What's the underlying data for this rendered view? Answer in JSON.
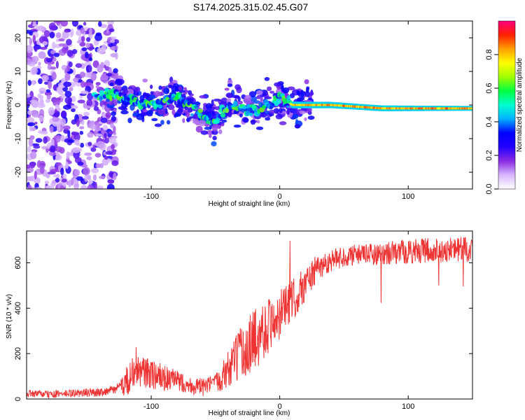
{
  "title": "S174.2025.315.02.45.G07",
  "chart_data": [
    {
      "type": "heatmap",
      "xlabel": "Height of straight line (km)",
      "ylabel": "Frequency (Hz)",
      "xlim": [
        -197,
        150
      ],
      "ylim": [
        -25,
        25
      ],
      "xticks": [
        -100,
        0,
        100
      ],
      "xtick_labels": [
        "-100",
        "0",
        "100"
      ],
      "yticks": [
        -20,
        -10,
        0,
        10,
        20
      ],
      "ytick_labels": [
        "-20",
        "-10",
        "0",
        "10",
        "20"
      ],
      "ridge": [
        {
          "x": -145,
          "y": 3
        },
        {
          "x": -130,
          "y": 3
        },
        {
          "x": -120,
          "y": 2
        },
        {
          "x": -110,
          "y": 1
        },
        {
          "x": -100,
          "y": 0
        },
        {
          "x": -90,
          "y": 1
        },
        {
          "x": -80,
          "y": 2
        },
        {
          "x": -72,
          "y": 0
        },
        {
          "x": -65,
          "y": -2
        },
        {
          "x": -58,
          "y": -4
        },
        {
          "x": -50,
          "y": -5
        },
        {
          "x": -44,
          "y": -2
        },
        {
          "x": -38,
          "y": 0
        },
        {
          "x": -30,
          "y": -1
        },
        {
          "x": -24,
          "y": -2
        },
        {
          "x": -18,
          "y": -1
        },
        {
          "x": -10,
          "y": 0
        },
        {
          "x": -4,
          "y": 1
        },
        {
          "x": 0,
          "y": 2.5
        },
        {
          "x": 5,
          "y": 1
        },
        {
          "x": 10,
          "y": 0
        },
        {
          "x": 20,
          "y": 0
        },
        {
          "x": 40,
          "y": 0
        },
        {
          "x": 60,
          "y": -0.5
        },
        {
          "x": 80,
          "y": -1
        },
        {
          "x": 100,
          "y": -1
        },
        {
          "x": 125,
          "y": -1
        },
        {
          "x": 150,
          "y": -1
        }
      ]
    },
    {
      "type": "colorbar",
      "label": "Normalized spectral amplitude",
      "range": [
        0,
        1
      ],
      "ticks": [
        "0.0",
        "0.2",
        "0.4",
        "0.6",
        "0.8"
      ],
      "tick_values": [
        0,
        0.2,
        0.4,
        0.6,
        0.8
      ],
      "colors": [
        "#ffffff",
        "#d8b8ff",
        "#8a2be2",
        "#2200ff",
        "#0000ff",
        "#00b0ff",
        "#00ffd0",
        "#00ff40",
        "#a0ff00",
        "#ffff00",
        "#ffa000",
        "#ff2000",
        "#ff0080"
      ]
    },
    {
      "type": "line",
      "xlabel": "Height of straight line (km)",
      "ylabel": "SNR (10 * v/v)",
      "xlim": [
        -197,
        150
      ],
      "ylim": [
        0,
        740
      ],
      "xticks": [
        -100,
        0,
        100
      ],
      "xtick_labels": [
        "-100",
        "0",
        "100"
      ],
      "yticks": [
        0,
        200,
        400,
        600
      ],
      "ytick_labels": [
        "0",
        "200",
        "400",
        "600"
      ],
      "color": "#ee3333",
      "series": [
        {
          "name": "SNR",
          "points": [
            {
              "x": -197,
              "y": 25
            },
            {
              "x": -180,
              "y": 20
            },
            {
              "x": -160,
              "y": 25
            },
            {
              "x": -140,
              "y": 30
            },
            {
              "x": -130,
              "y": 40
            },
            {
              "x": -122,
              "y": 60
            },
            {
              "x": -115,
              "y": 110
            },
            {
              "x": -110,
              "y": 120
            },
            {
              "x": -100,
              "y": 110
            },
            {
              "x": -90,
              "y": 90
            },
            {
              "x": -80,
              "y": 80
            },
            {
              "x": -70,
              "y": 60
            },
            {
              "x": -60,
              "y": 50
            },
            {
              "x": -50,
              "y": 70
            },
            {
              "x": -40,
              "y": 130
            },
            {
              "x": -30,
              "y": 200
            },
            {
              "x": -20,
              "y": 260
            },
            {
              "x": -10,
              "y": 320
            },
            {
              "x": 0,
              "y": 370
            },
            {
              "x": 10,
              "y": 430
            },
            {
              "x": 20,
              "y": 510
            },
            {
              "x": 30,
              "y": 580
            },
            {
              "x": 40,
              "y": 610
            },
            {
              "x": 50,
              "y": 630
            },
            {
              "x": 60,
              "y": 635
            },
            {
              "x": 80,
              "y": 640
            },
            {
              "x": 100,
              "y": 650
            },
            {
              "x": 120,
              "y": 655
            },
            {
              "x": 150,
              "y": 660
            }
          ],
          "noise": [
            {
              "x": -197,
              "y": 15
            },
            {
              "x": -125,
              "y": 20
            },
            {
              "x": -118,
              "y": 70
            },
            {
              "x": -100,
              "y": 70
            },
            {
              "x": -75,
              "y": 40
            },
            {
              "x": -50,
              "y": 40
            },
            {
              "x": -35,
              "y": 110
            },
            {
              "x": -20,
              "y": 140
            },
            {
              "x": 0,
              "y": 110
            },
            {
              "x": 20,
              "y": 80
            },
            {
              "x": 35,
              "y": 50
            },
            {
              "x": 60,
              "y": 45
            },
            {
              "x": 100,
              "y": 55
            },
            {
              "x": 150,
              "y": 55
            }
          ]
        }
      ]
    }
  ]
}
